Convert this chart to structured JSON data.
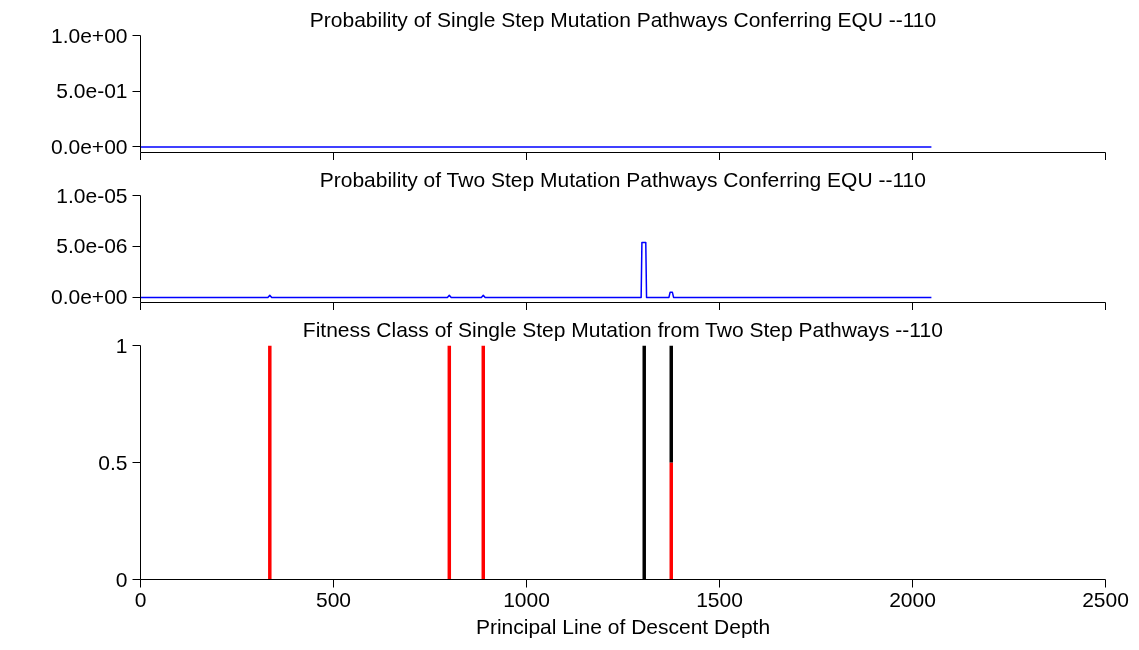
{
  "chart_data": [
    {
      "type": "line",
      "title": "Probability of Single Step Mutation Pathways Conferring EQU --110",
      "x": [
        0,
        2049
      ],
      "series": [
        {
          "color": "#0000ff",
          "values": [
            0,
            0
          ]
        }
      ],
      "xlim": [
        0,
        2500
      ],
      "xticks": [
        0,
        500,
        1000,
        1500,
        2000,
        2500
      ],
      "ylim": [
        -0.05,
        1
      ],
      "yticks": [
        {
          "value": 0,
          "label": "0.0e+00"
        },
        {
          "value": 0.5,
          "label": "5.0e-01"
        },
        {
          "value": 1,
          "label": "1.0e+00"
        }
      ],
      "tick_labels": "y",
      "grid": false
    },
    {
      "type": "line",
      "title": "Probability of Two Step Mutation Pathways Conferring EQU --110",
      "x": [
        0,
        330,
        335,
        340,
        795,
        800,
        805,
        883,
        888,
        893,
        1297,
        1299,
        1302,
        1307,
        1309,
        1311,
        1369,
        1372,
        1378,
        1381,
        2049
      ],
      "series": [
        {
          "color": "#0000ff",
          "values": [
            0,
            0,
            2e-07,
            0,
            0,
            2e-07,
            0,
            0,
            2e-07,
            0,
            0,
            5.4e-06,
            5.4e-06,
            5.4e-06,
            5.4e-06,
            0,
            0,
            5e-07,
            5e-07,
            0,
            0
          ]
        }
      ],
      "xlim": [
        0,
        2500
      ],
      "xticks": [
        0,
        500,
        1000,
        1500,
        2000,
        2500
      ],
      "ylim": [
        -5e-07,
        1e-05
      ],
      "yticks": [
        {
          "value": 0,
          "label": "0.0e+00"
        },
        {
          "value": 5e-06,
          "label": "5.0e-06"
        },
        {
          "value": 1e-05,
          "label": "1.0e-05"
        }
      ],
      "tick_labels": "y",
      "grid": false
    },
    {
      "type": "bar",
      "stacked": true,
      "title": "Fitness Class of Single Step Mutation from Two Step Pathways --110",
      "xlabel": "Principal Line of Descent Depth",
      "x": [
        335,
        800,
        888,
        1305,
        1375
      ],
      "series": [
        {
          "color": "#ff0000",
          "values": [
            1,
            1,
            1,
            0,
            0.5
          ]
        },
        {
          "color": "#000000",
          "values": [
            0,
            0,
            0,
            1,
            0.5
          ]
        }
      ],
      "xlim": [
        0,
        2500
      ],
      "xticks": [
        0,
        500,
        1000,
        1500,
        2000,
        2500
      ],
      "ylim": [
        0,
        1
      ],
      "yticks": [
        0,
        0.5,
        1
      ],
      "grid": false
    }
  ]
}
